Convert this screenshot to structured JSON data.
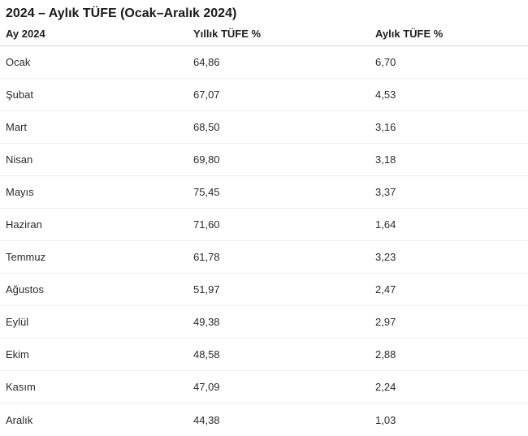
{
  "title": "2024 – Aylık TÜFE (Ocak–Aralık 2024)",
  "table": {
    "columns": [
      "Ay 2024",
      "Yıllık TÜFE %",
      "Aylık TÜFE %"
    ],
    "rows": [
      [
        "Ocak",
        "64,86",
        "6,70"
      ],
      [
        "Şubat",
        "67,07",
        "4,53"
      ],
      [
        "Mart",
        "68,50",
        "3,16"
      ],
      [
        "Nisan",
        "69,80",
        "3,18"
      ],
      [
        "Mayıs",
        "75,45",
        "3,37"
      ],
      [
        "Haziran",
        "71,60",
        "1,64"
      ],
      [
        "Temmuz",
        "61,78",
        "3,23"
      ],
      [
        "Ağustos",
        "51,97",
        "2,47"
      ],
      [
        "Eylül",
        "49,38",
        "2,97"
      ],
      [
        "Ekim",
        "48,58",
        "2,88"
      ],
      [
        "Kasım",
        "47,09",
        "2,24"
      ],
      [
        "Aralık",
        "44,38",
        "1,03"
      ]
    ]
  },
  "colors": {
    "background": "#ffffff",
    "title_text": "#1a1a1a",
    "header_text": "#1f1f1f",
    "cell_text": "#2b2b2b",
    "header_divider": "#d6d6d6",
    "row_divider": "#efefef"
  },
  "chart_data": {
    "type": "table",
    "title": "2024 – Aylık TÜFE (Ocak–Aralık 2024)",
    "columns": [
      "Ay 2024",
      "Yıllık TÜFE %",
      "Aylık TÜFE %"
    ],
    "categories": [
      "Ocak",
      "Şubat",
      "Mart",
      "Nisan",
      "Mayıs",
      "Haziran",
      "Temmuz",
      "Ağustos",
      "Eylül",
      "Ekim",
      "Kasım",
      "Aralık"
    ],
    "series": [
      {
        "name": "Yıllık TÜFE %",
        "values": [
          64.86,
          67.07,
          68.5,
          69.8,
          75.45,
          71.6,
          61.78,
          51.97,
          49.38,
          48.58,
          47.09,
          44.38
        ]
      },
      {
        "name": "Aylık TÜFE %",
        "values": [
          6.7,
          4.53,
          3.16,
          3.18,
          3.37,
          1.64,
          3.23,
          2.47,
          2.97,
          2.88,
          2.24,
          1.03
        ]
      }
    ],
    "decimal_separator": ",",
    "grid": "horizontal-dividers-only",
    "legend_position": "none"
  }
}
